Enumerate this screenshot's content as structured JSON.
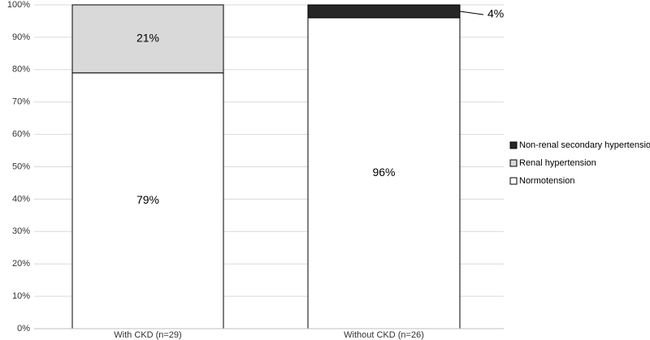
{
  "chart_data": {
    "type": "stacked-bar",
    "categories": [
      "With CKD (n=29)",
      "Without CKD (n=26)"
    ],
    "series": [
      {
        "name": "Normotension",
        "color": "#ffffff",
        "values": [
          79,
          96
        ],
        "value_labels": [
          "79%",
          "96%"
        ]
      },
      {
        "name": "Renal hypertension",
        "color": "#d9d9d9",
        "values": [
          21,
          0
        ],
        "value_labels": [
          "21%",
          null
        ]
      },
      {
        "name": "Non-renal secondary hypertension",
        "color": "#262626",
        "values": [
          0,
          4
        ],
        "value_labels": [
          null,
          "4%"
        ]
      }
    ],
    "ylim": [
      0,
      100
    ],
    "yticks": [
      {
        "value": 0,
        "label": "0%"
      },
      {
        "value": 10,
        "label": "10%"
      },
      {
        "value": 20,
        "label": "20%"
      },
      {
        "value": 30,
        "label": "30%"
      },
      {
        "value": 40,
        "label": "40%"
      },
      {
        "value": 50,
        "label": "50%"
      },
      {
        "value": 60,
        "label": "60%"
      },
      {
        "value": 70,
        "label": "70%"
      },
      {
        "value": 80,
        "label": "80%"
      },
      {
        "value": 90,
        "label": "90%"
      },
      {
        "value": 100,
        "label": "100%"
      }
    ],
    "grid": true,
    "legend": "right"
  }
}
